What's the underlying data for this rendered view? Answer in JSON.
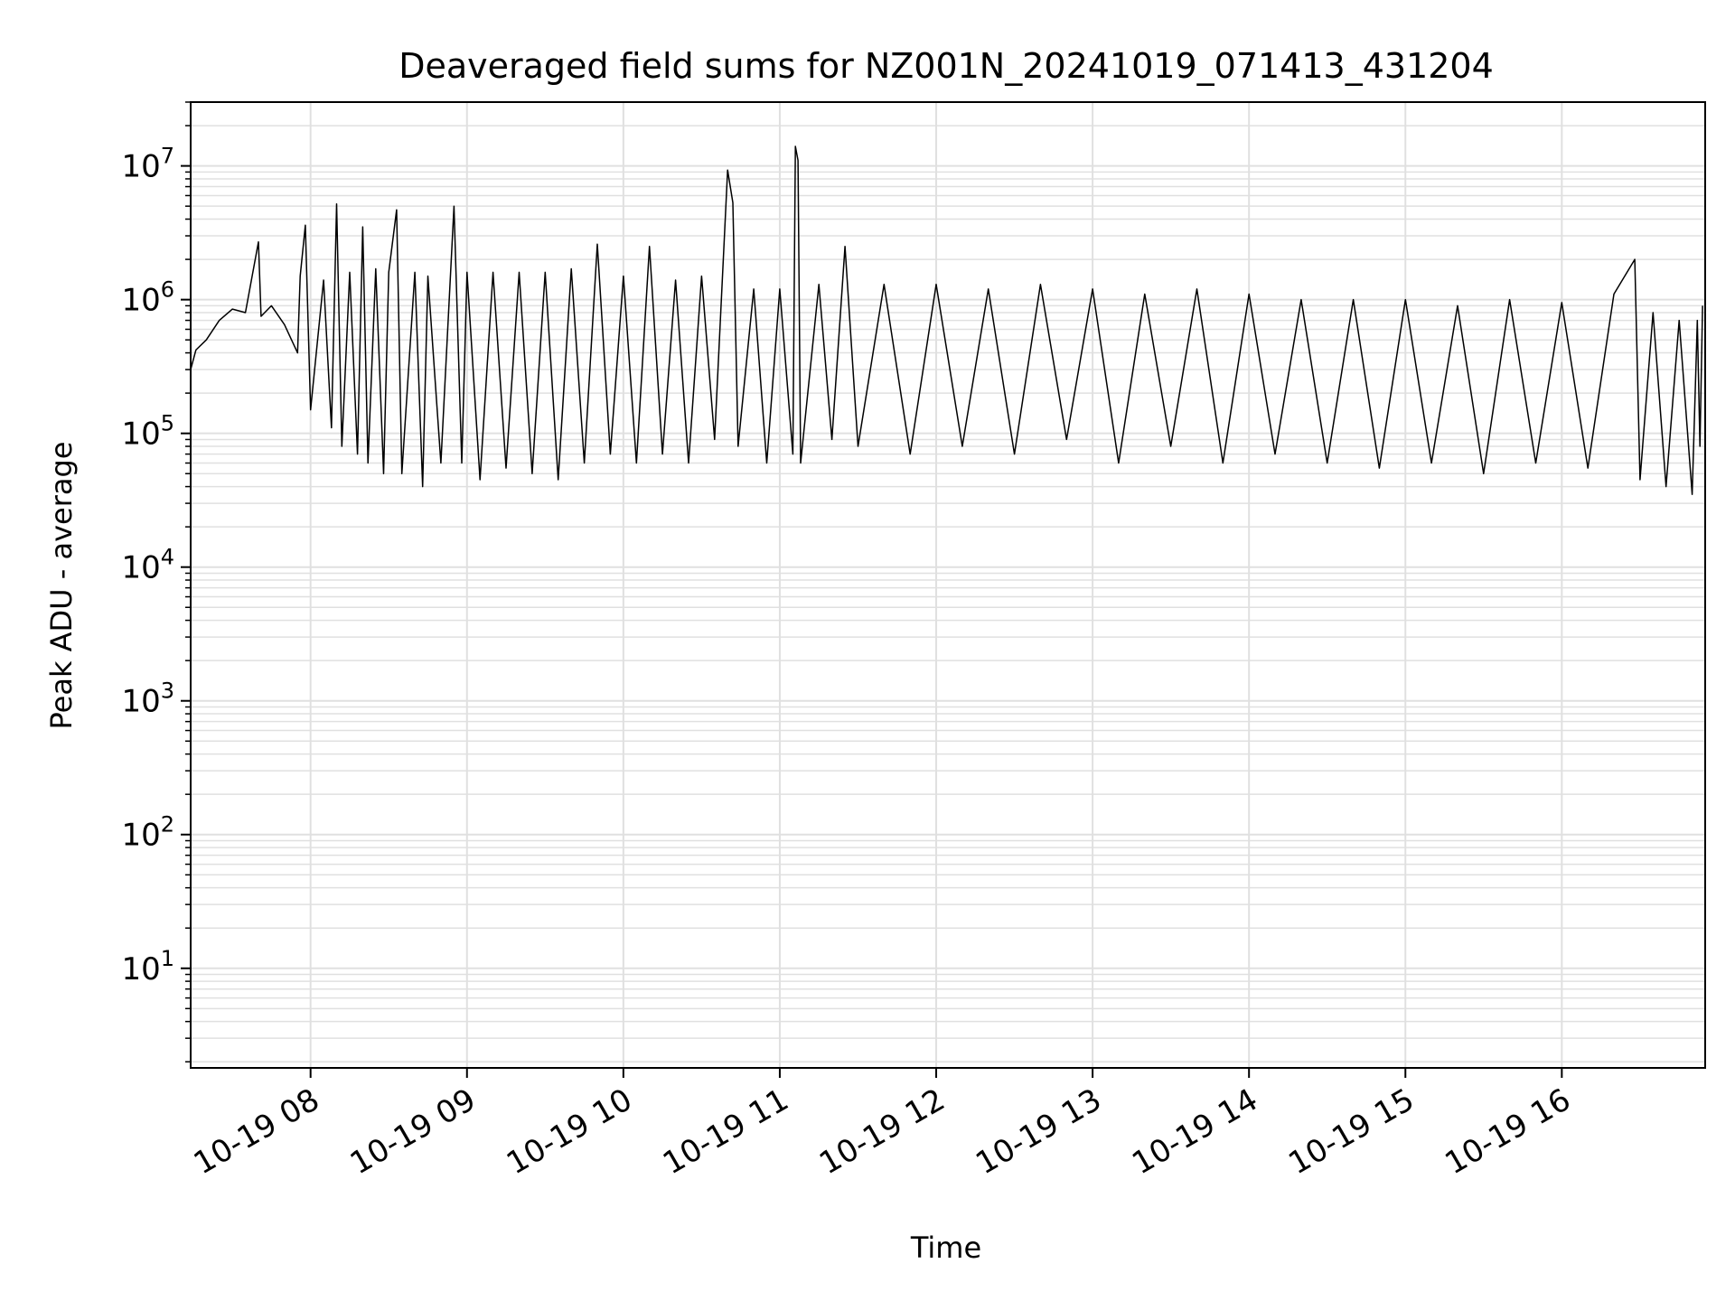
{
  "chart_data": {
    "type": "line",
    "title": "Deaveraged field sums for NZ001N_20241019_071413_431204",
    "xlabel": "Time",
    "ylabel": "Peak ADU - average",
    "xlim": [
      "2024-10-19 07:14",
      "2024-10-19 16:55"
    ],
    "ylim": [
      1.8,
      30000000
    ],
    "yscale": "log",
    "grid": true,
    "legend": false,
    "line_color": "#000000",
    "grid_color": "#e0e0e0",
    "x_ticks": [
      {
        "time": "2024-10-19 08:00",
        "label": "10-19 08"
      },
      {
        "time": "2024-10-19 09:00",
        "label": "10-19 09"
      },
      {
        "time": "2024-10-19 10:00",
        "label": "10-19 10"
      },
      {
        "time": "2024-10-19 11:00",
        "label": "10-19 11"
      },
      {
        "time": "2024-10-19 12:00",
        "label": "10-19 12"
      },
      {
        "time": "2024-10-19 13:00",
        "label": "10-19 13"
      },
      {
        "time": "2024-10-19 14:00",
        "label": "10-19 14"
      },
      {
        "time": "2024-10-19 15:00",
        "label": "10-19 15"
      },
      {
        "time": "2024-10-19 16:00",
        "label": "10-19 16"
      }
    ],
    "y_ticks": [
      {
        "value": 10,
        "base": "10",
        "exp": "1"
      },
      {
        "value": 100,
        "base": "10",
        "exp": "2"
      },
      {
        "value": 1000,
        "base": "10",
        "exp": "3"
      },
      {
        "value": 10000,
        "base": "10",
        "exp": "4"
      },
      {
        "value": 100000,
        "base": "10",
        "exp": "5"
      },
      {
        "value": 1000000,
        "base": "10",
        "exp": "6"
      },
      {
        "value": 10000000,
        "base": "10",
        "exp": "7"
      }
    ],
    "series": [
      {
        "points": [
          [
            "2024-10-19 07:14",
            300000
          ],
          [
            "2024-10-19 07:16",
            420000
          ],
          [
            "2024-10-19 07:20",
            500000
          ],
          [
            "2024-10-19 07:25",
            700000
          ],
          [
            "2024-10-19 07:30",
            850000
          ],
          [
            "2024-10-19 07:35",
            800000
          ],
          [
            "2024-10-19 07:40",
            2700000
          ],
          [
            "2024-10-19 07:41",
            750000
          ],
          [
            "2024-10-19 07:45",
            900000
          ],
          [
            "2024-10-19 07:50",
            650000
          ],
          [
            "2024-10-19 07:55",
            400000
          ],
          [
            "2024-10-19 07:56",
            1500000
          ],
          [
            "2024-10-19 07:58",
            3600000
          ],
          [
            "2024-10-19 08:00",
            150000
          ],
          [
            "2024-10-19 08:05",
            1400000
          ],
          [
            "2024-10-19 08:08",
            110000
          ],
          [
            "2024-10-19 08:10",
            5200000
          ],
          [
            "2024-10-19 08:12",
            80000
          ],
          [
            "2024-10-19 08:15",
            1600000
          ],
          [
            "2024-10-19 08:18",
            70000
          ],
          [
            "2024-10-19 08:20",
            3500000
          ],
          [
            "2024-10-19 08:22",
            60000
          ],
          [
            "2024-10-19 08:25",
            1700000
          ],
          [
            "2024-10-19 08:28",
            50000
          ],
          [
            "2024-10-19 08:30",
            1600000
          ],
          [
            "2024-10-19 08:33",
            4700000
          ],
          [
            "2024-10-19 08:35",
            50000
          ],
          [
            "2024-10-19 08:40",
            1600000
          ],
          [
            "2024-10-19 08:43",
            40000
          ],
          [
            "2024-10-19 08:45",
            1500000
          ],
          [
            "2024-10-19 08:50",
            60000
          ],
          [
            "2024-10-19 08:55",
            5000000
          ],
          [
            "2024-10-19 08:58",
            60000
          ],
          [
            "2024-10-19 09:00",
            1600000
          ],
          [
            "2024-10-19 09:05",
            45000
          ],
          [
            "2024-10-19 09:10",
            1600000
          ],
          [
            "2024-10-19 09:15",
            55000
          ],
          [
            "2024-10-19 09:20",
            1600000
          ],
          [
            "2024-10-19 09:25",
            50000
          ],
          [
            "2024-10-19 09:30",
            1600000
          ],
          [
            "2024-10-19 09:35",
            45000
          ],
          [
            "2024-10-19 09:40",
            1700000
          ],
          [
            "2024-10-19 09:45",
            60000
          ],
          [
            "2024-10-19 09:50",
            2600000
          ],
          [
            "2024-10-19 09:55",
            70000
          ],
          [
            "2024-10-19 10:00",
            1500000
          ],
          [
            "2024-10-19 10:05",
            60000
          ],
          [
            "2024-10-19 10:10",
            2500000
          ],
          [
            "2024-10-19 10:15",
            70000
          ],
          [
            "2024-10-19 10:20",
            1400000
          ],
          [
            "2024-10-19 10:25",
            60000
          ],
          [
            "2024-10-19 10:30",
            1500000
          ],
          [
            "2024-10-19 10:35",
            90000
          ],
          [
            "2024-10-19 10:40",
            9300000
          ],
          [
            "2024-10-19 10:42",
            5300000
          ],
          [
            "2024-10-19 10:44",
            80000
          ],
          [
            "2024-10-19 10:50",
            1200000
          ],
          [
            "2024-10-19 10:55",
            60000
          ],
          [
            "2024-10-19 11:00",
            1200000
          ],
          [
            "2024-10-19 11:05",
            70000
          ],
          [
            "2024-10-19 11:06",
            14000000
          ],
          [
            "2024-10-19 11:07",
            11000000
          ],
          [
            "2024-10-19 11:08",
            60000
          ],
          [
            "2024-10-19 11:15",
            1300000
          ],
          [
            "2024-10-19 11:20",
            90000
          ],
          [
            "2024-10-19 11:25",
            2500000
          ],
          [
            "2024-10-19 11:30",
            80000
          ],
          [
            "2024-10-19 11:40",
            1300000
          ],
          [
            "2024-10-19 11:50",
            70000
          ],
          [
            "2024-10-19 12:00",
            1300000
          ],
          [
            "2024-10-19 12:10",
            80000
          ],
          [
            "2024-10-19 12:20",
            1200000
          ],
          [
            "2024-10-19 12:30",
            70000
          ],
          [
            "2024-10-19 12:40",
            1300000
          ],
          [
            "2024-10-19 12:50",
            90000
          ],
          [
            "2024-10-19 13:00",
            1200000
          ],
          [
            "2024-10-19 13:10",
            60000
          ],
          [
            "2024-10-19 13:20",
            1100000
          ],
          [
            "2024-10-19 13:30",
            80000
          ],
          [
            "2024-10-19 13:40",
            1200000
          ],
          [
            "2024-10-19 13:50",
            60000
          ],
          [
            "2024-10-19 14:00",
            1100000
          ],
          [
            "2024-10-19 14:10",
            70000
          ],
          [
            "2024-10-19 14:20",
            1000000
          ],
          [
            "2024-10-19 14:30",
            60000
          ],
          [
            "2024-10-19 14:40",
            1000000
          ],
          [
            "2024-10-19 14:50",
            55000
          ],
          [
            "2024-10-19 15:00",
            1000000
          ],
          [
            "2024-10-19 15:10",
            60000
          ],
          [
            "2024-10-19 15:20",
            900000
          ],
          [
            "2024-10-19 15:30",
            50000
          ],
          [
            "2024-10-19 15:40",
            1000000
          ],
          [
            "2024-10-19 15:50",
            60000
          ],
          [
            "2024-10-19 16:00",
            950000
          ],
          [
            "2024-10-19 16:10",
            55000
          ],
          [
            "2024-10-19 16:20",
            1100000
          ],
          [
            "2024-10-19 16:28",
            2000000
          ],
          [
            "2024-10-19 16:30",
            45000
          ],
          [
            "2024-10-19 16:35",
            800000
          ],
          [
            "2024-10-19 16:40",
            40000
          ],
          [
            "2024-10-19 16:45",
            700000
          ],
          [
            "2024-10-19 16:50",
            35000
          ],
          [
            "2024-10-19 16:52",
            700000
          ],
          [
            "2024-10-19 16:53",
            80000
          ],
          [
            "2024-10-19 16:54",
            900000
          ]
        ]
      }
    ]
  }
}
